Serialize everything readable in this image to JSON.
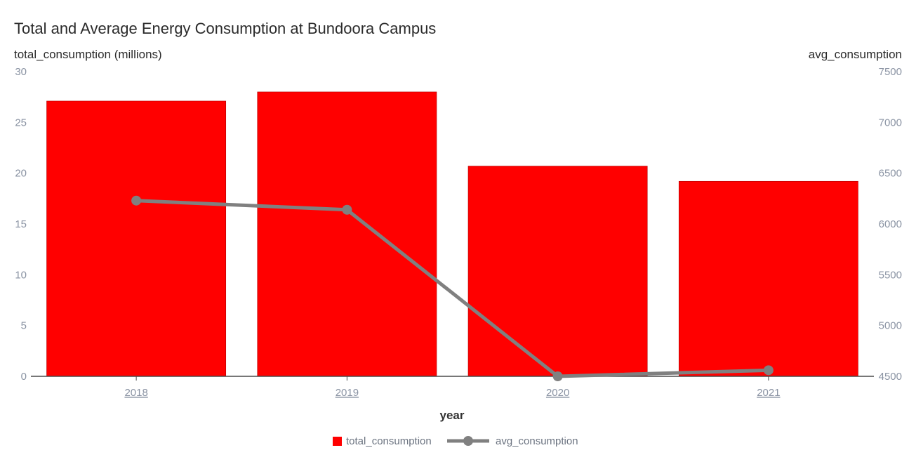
{
  "chart_data": {
    "type": "bar+line",
    "title": "Total and Average Energy Consumption at Bundoora Campus",
    "xlabel": "year",
    "ylabel_left": "total_consumption (millions)",
    "ylabel_right": "avg_consumption",
    "categories": [
      "2018",
      "2019",
      "2020",
      "2021"
    ],
    "left_axis": {
      "ylim": [
        0,
        30
      ],
      "ticks": [
        "0",
        "5",
        "10",
        "15",
        "20",
        "25",
        "30"
      ]
    },
    "right_axis": {
      "ylim": [
        4500,
        7500
      ],
      "ticks": [
        "4500",
        "5000",
        "5500",
        "6000",
        "6500",
        "7000",
        "7500"
      ]
    },
    "series": [
      {
        "name": "total_consumption",
        "kind": "bar",
        "axis": "left",
        "color": "#ff0000",
        "values": [
          27.1,
          28.0,
          20.7,
          19.2
        ]
      },
      {
        "name": "avg_consumption",
        "kind": "line",
        "axis": "right",
        "color": "#808080",
        "values": [
          6230,
          6140,
          4500,
          4560
        ]
      }
    ],
    "grid": false,
    "legend": "bottom-center"
  }
}
